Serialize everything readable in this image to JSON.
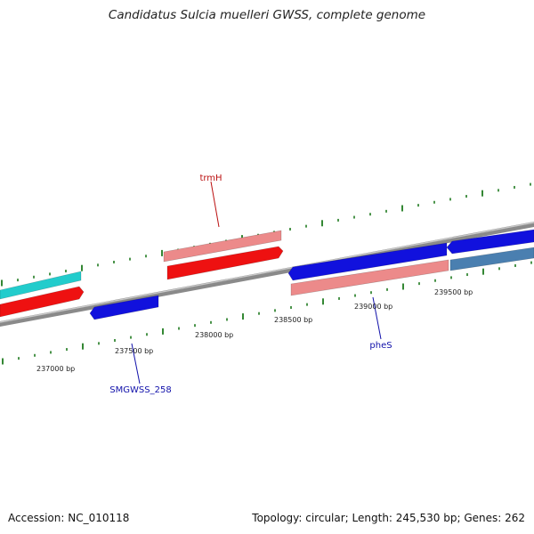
{
  "title": "Candidatus Sulcia muelleri GWSS, complete genome",
  "footer": {
    "accession": "Accession: NC_010118",
    "summary": "Topology: circular; Length: 245,530 bp; Genes: 262"
  },
  "colors": {
    "backbone": "#8a8a8a",
    "tick": "#1e7a1e",
    "gene_red": "#ee1111",
    "gene_pink": "#ec8a8a",
    "gene_blue": "#1111dd",
    "gene_cyan": "#22cccc",
    "gene_steel": "#4a7fb0",
    "label_red": "#bb1111",
    "label_blue": "#1111aa"
  },
  "scale_labels": [
    "237000 bp",
    "237500 bp",
    "238000 bp",
    "238500 bp",
    "239000 bp",
    "239500 bp"
  ],
  "gene_labels": {
    "trmH": "trmH",
    "pheS": "pheS",
    "smgwss258": "SMGWSS_258"
  }
}
